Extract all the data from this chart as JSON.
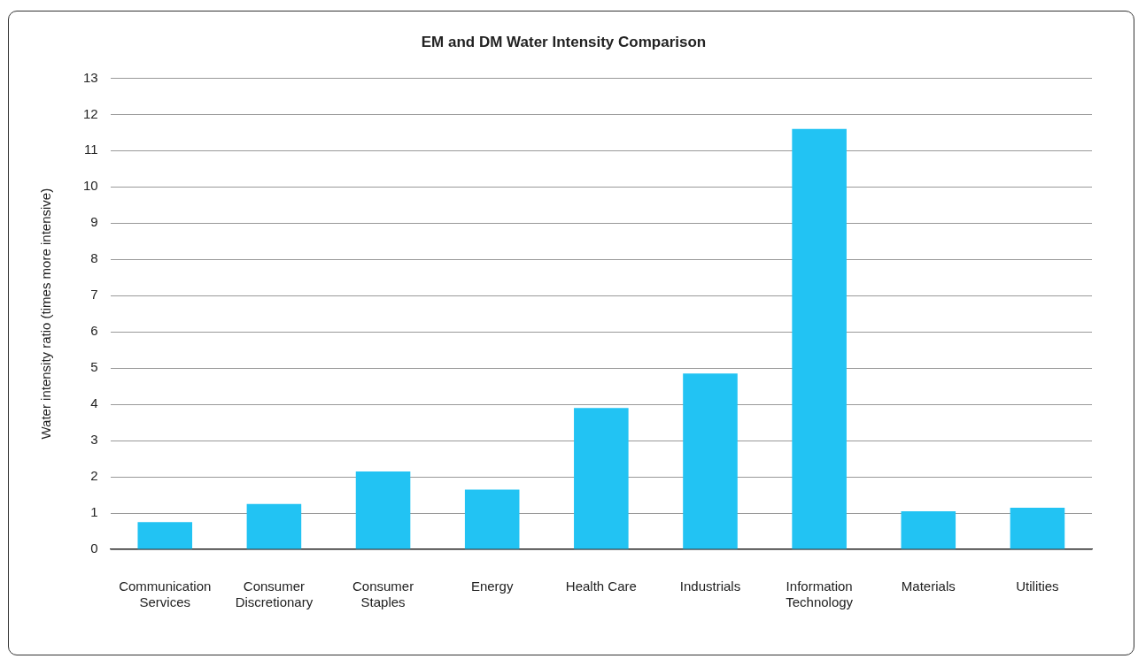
{
  "chart_data": {
    "type": "bar",
    "title": "EM and DM Water Intensity Comparison",
    "ylabel": "Water intensity ratio (times more intensive)",
    "categories": [
      "Communication Services",
      "Consumer Discretionary",
      "Consumer Staples",
      "Energy",
      "Health Care",
      "Industrials",
      "Information Technology",
      "Materials",
      "Utilities"
    ],
    "values": [
      0.75,
      1.25,
      2.15,
      1.65,
      3.9,
      4.85,
      11.6,
      1.05,
      1.15
    ],
    "color": "#22c3f3",
    "ylim": [
      0,
      13
    ],
    "yticks": [
      0,
      1,
      2,
      3,
      4,
      5,
      6,
      7,
      8,
      9,
      10,
      11,
      12,
      13
    ],
    "grid": "y",
    "legend": false
  }
}
